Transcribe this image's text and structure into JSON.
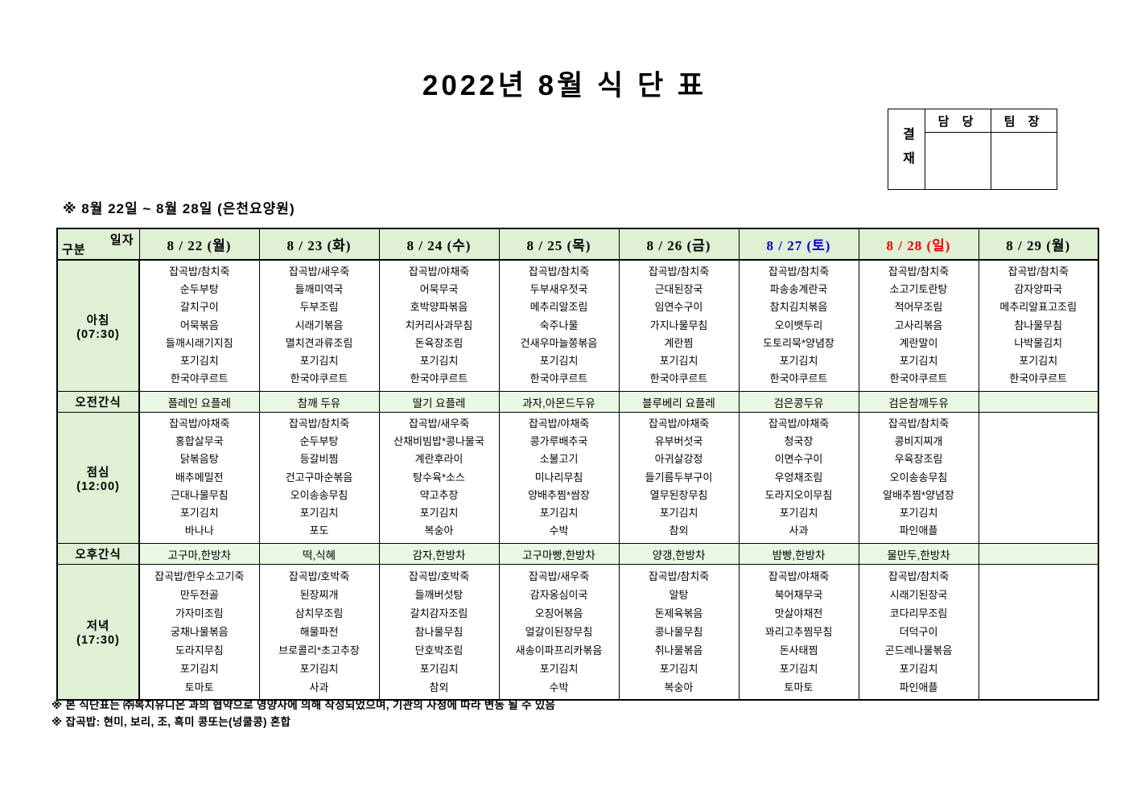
{
  "title": "2022년 8월 식 단 표",
  "approval": {
    "stamp_label": "결재",
    "columns": [
      "담 당",
      "팀 장"
    ]
  },
  "subtitle": "※ 8월 22일 ~ 8월 28일 (은천요양원)",
  "colors": {
    "header_green": "#dff0d5",
    "snack_green": "#eaf7e3",
    "saturday_blue": "#0000cc",
    "sunday_red": "#ee0000"
  },
  "table": {
    "corner": {
      "top": "일자",
      "bottom": "구분"
    },
    "columns": [
      {
        "label": "8 / 22 (월)",
        "color": "#000000"
      },
      {
        "label": "8 / 23 (화)",
        "color": "#000000"
      },
      {
        "label": "8 / 24 (수)",
        "color": "#000000"
      },
      {
        "label": "8 / 25 (목)",
        "color": "#000000"
      },
      {
        "label": "8 / 26 (금)",
        "color": "#000000"
      },
      {
        "label": "8 / 27 (토)",
        "color": "#0000cc"
      },
      {
        "label": "8 / 28 (일)",
        "color": "#ee0000"
      },
      {
        "label": "8 / 29 (월)",
        "color": "#000000"
      }
    ],
    "rows": [
      {
        "key": "breakfast",
        "type": "meal",
        "label": "아침",
        "time": "(07:30)",
        "cells": [
          [
            "잡곡밥/참치죽",
            "순두부탕",
            "갈치구이",
            "어묵볶음",
            "들깨시래기지짐",
            "포기김치",
            "한국야쿠르트"
          ],
          [
            "잡곡밥/새우죽",
            "들깨미역국",
            "두부조림",
            "시래기볶음",
            "멸치견과류조림",
            "포기김치",
            "한국야쿠르트"
          ],
          [
            "잡곡밥/야채죽",
            "어묵무국",
            "호박양파볶음",
            "치커리사과무침",
            "돈육장조림",
            "포기김치",
            "한국야쿠르트"
          ],
          [
            "잡곡밥/참치죽",
            "두부새우젓국",
            "메추리알조림",
            "숙주나물",
            "건새우마늘쫑볶음",
            "포기김치",
            "한국야쿠르트"
          ],
          [
            "잡곡밥/참치죽",
            "근대된장국",
            "임연수구이",
            "가지나물무침",
            "계란찜",
            "포기김치",
            "한국야쿠르트"
          ],
          [
            "잡곡밥/참치죽",
            "파송송계란국",
            "참치김치볶음",
            "오이뱃두리",
            "도토리묵*양념장",
            "포기김치",
            "한국야쿠르트"
          ],
          [
            "잡곡밥/참치죽",
            "소고기토란탕",
            "적어무조림",
            "고사리볶음",
            "계란말이",
            "포기김치",
            "한국야쿠르트"
          ],
          [
            "잡곡밥/참치죽",
            "감자양파국",
            "메추리알표고조림",
            "참나물무침",
            "나박물김치",
            "포기김치",
            "한국야쿠르트"
          ]
        ]
      },
      {
        "key": "morning-snack",
        "type": "snack",
        "label": "오전간식",
        "cells": [
          "플레인 요플레",
          "참깨 두유",
          "딸기 요플레",
          "과자,아몬드두유",
          "블루베리 요플레",
          "검은콩두유",
          "검은참깨두유",
          ""
        ]
      },
      {
        "key": "lunch",
        "type": "meal",
        "label": "점심",
        "time": "(12:00)",
        "cells": [
          [
            "잡곡밥/야채죽",
            "홍합살무국",
            "닭볶음탕",
            "배추메밀전",
            "근대나물무침",
            "포기김치",
            "바나나"
          ],
          [
            "잡곡밥/참치죽",
            "순두부탕",
            "등갈비찜",
            "건고구마순볶음",
            "오이송송무침",
            "포기김치",
            "포도"
          ],
          [
            "잡곡밥/새우죽",
            "산채비빔밥*콩나물국",
            "계란후라이",
            "탕수육*소스",
            "약고추장",
            "포기김치",
            "복숭아"
          ],
          [
            "잡곡밥/야채죽",
            "콩가루배추국",
            "소불고기",
            "미나리무침",
            "양배추찜*쌈장",
            "포기김치",
            "수박"
          ],
          [
            "잡곡밥/야채죽",
            "유부버섯국",
            "아귀살강정",
            "들기름두부구이",
            "열무된장무침",
            "포기김치",
            "참외"
          ],
          [
            "잡곡밥/야채죽",
            "청국장",
            "이면수구이",
            "우엉채조림",
            "도라지오이무침",
            "포기김치",
            "사과"
          ],
          [
            "잡곡밥/참치죽",
            "콩비지찌개",
            "우육장조림",
            "오이송송무침",
            "알배추찜*양념장",
            "포기김치",
            "파인애플"
          ],
          []
        ]
      },
      {
        "key": "afternoon-snack",
        "type": "snack",
        "label": "오후간식",
        "cells": [
          "고구마,한방차",
          "떡,식혜",
          "감자,한방차",
          "고구마빵,한방차",
          "양갱,한방차",
          "밤빵,한방차",
          "물만두,한방차",
          ""
        ]
      },
      {
        "key": "dinner",
        "type": "meal",
        "label": "저녁",
        "time": "(17:30)",
        "cells": [
          [
            "잡곡밥/한우소고기죽",
            "만두전골",
            "가자미조림",
            "궁채나물볶음",
            "도라지무침",
            "포기김치",
            "토마토"
          ],
          [
            "잡곡밥/호박죽",
            "된장찌개",
            "삼치무조림",
            "해물파전",
            "브로콜리*초고추장",
            "포기김치",
            "사과"
          ],
          [
            "잡곡밥/호박죽",
            "들깨버섯탕",
            "갈치감자조림",
            "참나물무침",
            "단호박조림",
            "포기김치",
            "참외"
          ],
          [
            "잡곡밥/새우죽",
            "감자옹심이국",
            "오징어볶음",
            "얼갈이된장무침",
            "새송이파프리카볶음",
            "포기김치",
            "수박"
          ],
          [
            "잡곡밥/참치죽",
            "알탕",
            "돈제육볶음",
            "콩나물무침",
            "취나물볶음",
            "포기김치",
            "복숭아"
          ],
          [
            "잡곡밥/야채죽",
            "북어채무국",
            "맛살야채전",
            "꽈리고추찜무침",
            "돈사태찜",
            "포기김치",
            "토마토"
          ],
          [
            "잡곡밥/참치죽",
            "시래기된장국",
            "코다리무조림",
            "더덕구이",
            "곤드레나물볶음",
            "포기김치",
            "파인애플"
          ],
          []
        ]
      }
    ]
  },
  "footnotes": [
    "※ 본 식단표는 ㈜복지유니온 과의 협약으로 영양사에 의해 작성되었으며, 기관의 사정에 따라 변동 될 수 있음",
    "※ 잡곡밥: 현미, 보리, 조, 흑미 콩또는(넝쿨콩) 혼합"
  ]
}
